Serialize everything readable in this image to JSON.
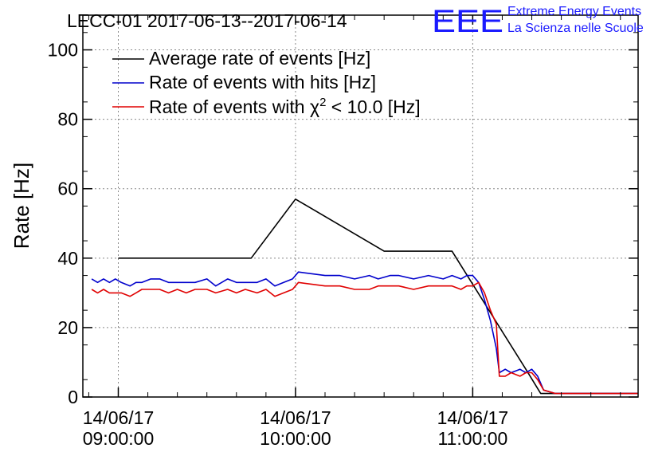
{
  "chart_data": {
    "type": "line",
    "title": "LECC-01 2017-06-13--2017-06-14",
    "ylabel": "Rate [Hz]",
    "xlabel": "",
    "ylim": [
      0,
      110
    ],
    "xlim": [
      "2017-06-14 08:48",
      "2017-06-14 11:56"
    ],
    "grid": true,
    "legend_position": "top-left",
    "y_ticks": [
      0,
      20,
      40,
      60,
      80,
      100
    ],
    "x_ticks": [
      {
        "x": "2017-06-14 09:00",
        "date": "14/06/17",
        "time": "09:00:00"
      },
      {
        "x": "2017-06-14 10:00",
        "date": "14/06/17",
        "time": "10:00:00"
      },
      {
        "x": "2017-06-14 11:00",
        "date": "14/06/17",
        "time": "11:00:00"
      }
    ],
    "legend_entries": [
      {
        "prefix": "Average rate of events [Hz]",
        "sup": "",
        "suffix": ""
      },
      {
        "prefix": "Rate of events with hits [Hz]",
        "sup": "",
        "suffix": ""
      },
      {
        "prefix": "Rate of events with χ",
        "sup": "2",
        "suffix": " < 10.0 [Hz]"
      }
    ],
    "series": [
      {
        "name": "Average rate of events [Hz]",
        "color": "#000000",
        "x": [
          "2017-06-14 09:00",
          "2017-06-14 09:45",
          "2017-06-14 10:00",
          "2017-06-14 10:30",
          "2017-06-14 10:53",
          "2017-06-14 11:18",
          "2017-06-14 11:23",
          "2017-06-14 11:56"
        ],
        "y": [
          40,
          40,
          57,
          42,
          42,
          8,
          1,
          1
        ]
      },
      {
        "name": "Rate of events with hits [Hz]",
        "color": "#0000cc",
        "x": [
          "2017-06-14 08:51",
          "2017-06-14 08:53",
          "2017-06-14 08:55",
          "2017-06-14 08:57",
          "2017-06-14 08:59",
          "2017-06-14 09:01",
          "2017-06-14 09:04",
          "2017-06-14 09:06",
          "2017-06-14 09:08",
          "2017-06-14 09:11",
          "2017-06-14 09:14",
          "2017-06-14 09:17",
          "2017-06-14 09:20",
          "2017-06-14 09:23",
          "2017-06-14 09:26",
          "2017-06-14 09:30",
          "2017-06-14 09:33",
          "2017-06-14 09:37",
          "2017-06-14 09:40",
          "2017-06-14 09:43",
          "2017-06-14 09:47",
          "2017-06-14 09:50",
          "2017-06-14 09:53",
          "2017-06-14 09:56",
          "2017-06-14 09:59",
          "2017-06-14 10:01",
          "2017-06-14 10:10",
          "2017-06-14 10:15",
          "2017-06-14 10:20",
          "2017-06-14 10:25",
          "2017-06-14 10:28",
          "2017-06-14 10:32",
          "2017-06-14 10:35",
          "2017-06-14 10:40",
          "2017-06-14 10:45",
          "2017-06-14 10:50",
          "2017-06-14 10:53",
          "2017-06-14 10:56",
          "2017-06-14 10:58",
          "2017-06-14 11:00",
          "2017-06-14 11:02",
          "2017-06-14 11:04",
          "2017-06-14 11:06",
          "2017-06-14 11:08",
          "2017-06-14 11:09",
          "2017-06-14 11:11",
          "2017-06-14 11:13",
          "2017-06-14 11:16",
          "2017-06-14 11:18",
          "2017-06-14 11:20",
          "2017-06-14 11:22",
          "2017-06-14 11:24",
          "2017-06-14 11:28",
          "2017-06-14 11:35",
          "2017-06-14 11:56"
        ],
        "y": [
          34,
          33,
          34,
          33,
          34,
          33,
          32,
          33,
          33,
          34,
          34,
          33,
          33,
          33,
          33,
          34,
          32,
          34,
          33,
          33,
          33,
          34,
          32,
          33,
          34,
          36,
          35,
          35,
          34,
          35,
          34,
          35,
          35,
          34,
          35,
          34,
          35,
          34,
          35,
          35,
          33,
          28,
          22,
          14,
          7,
          8,
          7,
          8,
          7,
          8,
          6,
          2,
          1,
          1,
          1
        ]
      },
      {
        "name": "Rate of events with χ2 < 10.0 [Hz]",
        "color": "#e00000",
        "x": [
          "2017-06-14 08:51",
          "2017-06-14 08:53",
          "2017-06-14 08:55",
          "2017-06-14 08:57",
          "2017-06-14 08:59",
          "2017-06-14 09:01",
          "2017-06-14 09:04",
          "2017-06-14 09:06",
          "2017-06-14 09:08",
          "2017-06-14 09:11",
          "2017-06-14 09:14",
          "2017-06-14 09:17",
          "2017-06-14 09:20",
          "2017-06-14 09:23",
          "2017-06-14 09:26",
          "2017-06-14 09:30",
          "2017-06-14 09:33",
          "2017-06-14 09:37",
          "2017-06-14 09:40",
          "2017-06-14 09:43",
          "2017-06-14 09:47",
          "2017-06-14 09:50",
          "2017-06-14 09:53",
          "2017-06-14 09:56",
          "2017-06-14 09:59",
          "2017-06-14 10:01",
          "2017-06-14 10:10",
          "2017-06-14 10:15",
          "2017-06-14 10:20",
          "2017-06-14 10:25",
          "2017-06-14 10:28",
          "2017-06-14 10:32",
          "2017-06-14 10:35",
          "2017-06-14 10:40",
          "2017-06-14 10:45",
          "2017-06-14 10:50",
          "2017-06-14 10:53",
          "2017-06-14 10:56",
          "2017-06-14 10:58",
          "2017-06-14 11:00",
          "2017-06-14 11:02",
          "2017-06-14 11:04",
          "2017-06-14 11:06",
          "2017-06-14 11:08",
          "2017-06-14 11:09",
          "2017-06-14 11:11",
          "2017-06-14 11:13",
          "2017-06-14 11:16",
          "2017-06-14 11:18",
          "2017-06-14 11:20",
          "2017-06-14 11:22",
          "2017-06-14 11:24",
          "2017-06-14 11:28",
          "2017-06-14 11:35",
          "2017-06-14 11:56"
        ],
        "y": [
          31,
          30,
          31,
          30,
          30,
          30,
          29,
          30,
          31,
          31,
          31,
          30,
          31,
          30,
          31,
          31,
          30,
          31,
          30,
          31,
          30,
          31,
          29,
          30,
          31,
          33,
          32,
          32,
          31,
          31,
          32,
          32,
          32,
          31,
          32,
          32,
          32,
          31,
          32,
          32,
          33,
          30,
          25,
          21,
          6,
          6,
          7,
          6,
          7,
          7,
          5,
          2,
          1,
          1,
          1
        ]
      }
    ]
  },
  "logo": {
    "mark": "EEE",
    "line1": "Extreme Energy Events",
    "line2": "La Scienza nelle Scuole",
    "color": "#1a1aff"
  }
}
